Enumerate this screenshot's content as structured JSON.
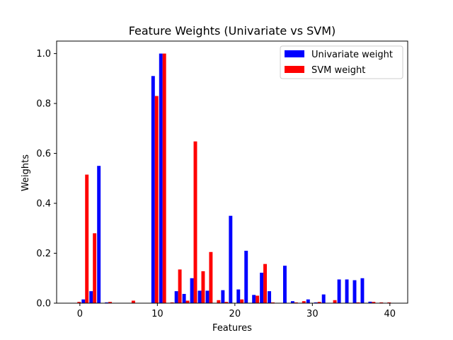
{
  "chart_data": {
    "type": "bar",
    "title": "Feature Weights (Univariate vs SVM)",
    "xlabel": "Features",
    "ylabel": "Weights",
    "xlim": [
      -3,
      42.3
    ],
    "ylim": [
      0,
      1.05
    ],
    "xticks": [
      0,
      10,
      20,
      30,
      40
    ],
    "yticks": [
      0.0,
      0.2,
      0.4,
      0.6,
      0.8,
      1.0
    ],
    "ytick_labels": [
      "0.0",
      "0.2",
      "0.4",
      "0.6",
      "0.8",
      "1.0"
    ],
    "bar_width": 0.45,
    "legend_position": "top-right",
    "series": [
      {
        "name": "Univariate weight",
        "color": "#0000ff",
        "offset": 0.45,
        "x": [
          0,
          1,
          2,
          3,
          9,
          10,
          12,
          13,
          14,
          15,
          16,
          18,
          19,
          20,
          21,
          22,
          23,
          24,
          26,
          27,
          29,
          30,
          31,
          33,
          34,
          35,
          36,
          37
        ],
        "values": [
          0.015,
          0.048,
          0.55,
          0.003,
          0.91,
          1.0,
          0.048,
          0.037,
          0.1,
          0.05,
          0.05,
          0.052,
          0.35,
          0.055,
          0.21,
          0.033,
          0.122,
          0.048,
          0.15,
          0.008,
          0.015,
          0.003,
          0.035,
          0.095,
          0.095,
          0.092,
          0.1,
          0.006
        ]
      },
      {
        "name": "SVM weight",
        "color": "#ff0000",
        "offset": 0.9,
        "x": [
          -1,
          0,
          1,
          3,
          6,
          9,
          10,
          11,
          12,
          13,
          14,
          15,
          16,
          17,
          18,
          20,
          22,
          23,
          24,
          27,
          28,
          30,
          32,
          35,
          37,
          38,
          39
        ],
        "values": [
          0.005,
          0.515,
          0.28,
          0.005,
          0.01,
          0.83,
          1.0,
          0.003,
          0.135,
          0.01,
          0.648,
          0.128,
          0.205,
          0.012,
          0.005,
          0.015,
          0.03,
          0.157,
          0.003,
          0.003,
          0.008,
          0.005,
          0.012,
          0.003,
          0.005,
          0.003,
          0.003
        ]
      }
    ]
  }
}
